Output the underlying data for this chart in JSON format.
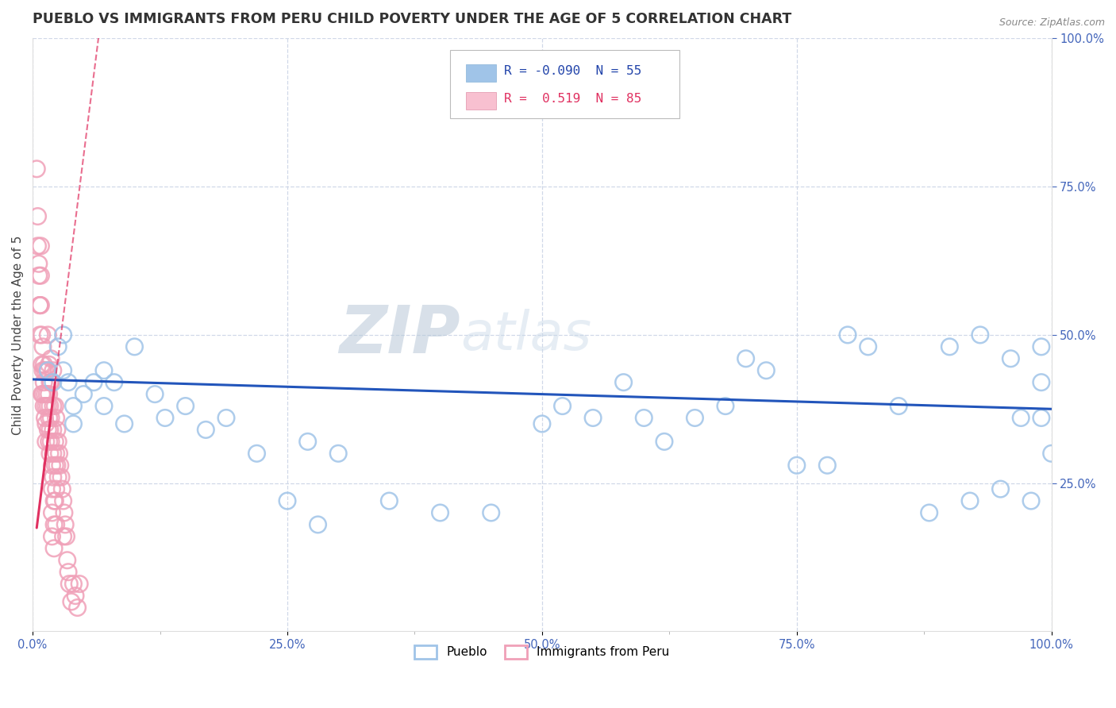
{
  "title": "PUEBLO VS IMMIGRANTS FROM PERU CHILD POVERTY UNDER THE AGE OF 5 CORRELATION CHART",
  "source": "Source: ZipAtlas.com",
  "ylabel": "Child Poverty Under the Age of 5",
  "xlim": [
    0.0,
    1.0
  ],
  "ylim": [
    0.0,
    1.0
  ],
  "xtick_labels": [
    "0.0%",
    "",
    "25.0%",
    "",
    "50.0%",
    "",
    "75.0%",
    "",
    "100.0%"
  ],
  "xtick_positions": [
    0.0,
    0.125,
    0.25,
    0.375,
    0.5,
    0.625,
    0.75,
    0.875,
    1.0
  ],
  "ytick_labels_right": [
    "100.0%",
    "75.0%",
    "50.0%",
    "25.0%"
  ],
  "ytick_positions": [
    1.0,
    0.75,
    0.5,
    0.25
  ],
  "pueblo_color": "#a0c4e8",
  "peru_color": "#f0a0b8",
  "pueblo_line_color": "#2255bb",
  "peru_line_color": "#e03060",
  "background_color": "#ffffff",
  "grid_color": "#d0d8e8",
  "title_color": "#333333",
  "title_fontsize": 12.5,
  "axis_label_fontsize": 11,
  "tick_fontsize": 10.5,
  "tick_color": "#4466bb",
  "watermark_zip_color": "#c8d4e0",
  "watermark_atlas_color": "#c8d4e0",
  "watermark_fontsize": 60,
  "pueblo_scatter": [
    [
      0.015,
      0.44
    ],
    [
      0.02,
      0.42
    ],
    [
      0.025,
      0.48
    ],
    [
      0.03,
      0.5
    ],
    [
      0.03,
      0.44
    ],
    [
      0.035,
      0.42
    ],
    [
      0.04,
      0.38
    ],
    [
      0.04,
      0.35
    ],
    [
      0.05,
      0.4
    ],
    [
      0.06,
      0.42
    ],
    [
      0.07,
      0.44
    ],
    [
      0.07,
      0.38
    ],
    [
      0.08,
      0.42
    ],
    [
      0.09,
      0.35
    ],
    [
      0.1,
      0.48
    ],
    [
      0.12,
      0.4
    ],
    [
      0.13,
      0.36
    ],
    [
      0.15,
      0.38
    ],
    [
      0.17,
      0.34
    ],
    [
      0.19,
      0.36
    ],
    [
      0.22,
      0.3
    ],
    [
      0.25,
      0.22
    ],
    [
      0.27,
      0.32
    ],
    [
      0.3,
      0.3
    ],
    [
      0.35,
      0.22
    ],
    [
      0.4,
      0.2
    ],
    [
      0.45,
      0.2
    ],
    [
      0.5,
      0.35
    ],
    [
      0.52,
      0.38
    ],
    [
      0.55,
      0.36
    ],
    [
      0.58,
      0.42
    ],
    [
      0.6,
      0.36
    ],
    [
      0.62,
      0.32
    ],
    [
      0.65,
      0.36
    ],
    [
      0.68,
      0.38
    ],
    [
      0.7,
      0.46
    ],
    [
      0.72,
      0.44
    ],
    [
      0.75,
      0.28
    ],
    [
      0.78,
      0.28
    ],
    [
      0.8,
      0.5
    ],
    [
      0.82,
      0.48
    ],
    [
      0.85,
      0.38
    ],
    [
      0.88,
      0.2
    ],
    [
      0.9,
      0.48
    ],
    [
      0.92,
      0.22
    ],
    [
      0.93,
      0.5
    ],
    [
      0.95,
      0.24
    ],
    [
      0.96,
      0.46
    ],
    [
      0.97,
      0.36
    ],
    [
      0.98,
      0.22
    ],
    [
      0.99,
      0.48
    ],
    [
      0.99,
      0.42
    ],
    [
      0.99,
      0.36
    ],
    [
      1.0,
      0.3
    ],
    [
      0.28,
      0.18
    ]
  ],
  "peru_scatter": [
    [
      0.004,
      0.78
    ],
    [
      0.005,
      0.7
    ],
    [
      0.005,
      0.65
    ],
    [
      0.006,
      0.62
    ],
    [
      0.006,
      0.6
    ],
    [
      0.007,
      0.55
    ],
    [
      0.007,
      0.5
    ],
    [
      0.007,
      0.55
    ],
    [
      0.008,
      0.65
    ],
    [
      0.008,
      0.6
    ],
    [
      0.008,
      0.55
    ],
    [
      0.009,
      0.5
    ],
    [
      0.009,
      0.45
    ],
    [
      0.009,
      0.4
    ],
    [
      0.01,
      0.48
    ],
    [
      0.01,
      0.44
    ],
    [
      0.01,
      0.4
    ],
    [
      0.011,
      0.45
    ],
    [
      0.011,
      0.42
    ],
    [
      0.011,
      0.38
    ],
    [
      0.012,
      0.44
    ],
    [
      0.012,
      0.4
    ],
    [
      0.012,
      0.36
    ],
    [
      0.013,
      0.38
    ],
    [
      0.013,
      0.35
    ],
    [
      0.013,
      0.32
    ],
    [
      0.014,
      0.44
    ],
    [
      0.014,
      0.4
    ],
    [
      0.015,
      0.5
    ],
    [
      0.015,
      0.44
    ],
    [
      0.015,
      0.38
    ],
    [
      0.015,
      0.34
    ],
    [
      0.016,
      0.45
    ],
    [
      0.016,
      0.4
    ],
    [
      0.016,
      0.36
    ],
    [
      0.016,
      0.32
    ],
    [
      0.017,
      0.42
    ],
    [
      0.017,
      0.38
    ],
    [
      0.017,
      0.34
    ],
    [
      0.017,
      0.3
    ],
    [
      0.018,
      0.46
    ],
    [
      0.018,
      0.42
    ],
    [
      0.018,
      0.36
    ],
    [
      0.018,
      0.32
    ],
    [
      0.019,
      0.28
    ],
    [
      0.019,
      0.24
    ],
    [
      0.019,
      0.2
    ],
    [
      0.019,
      0.16
    ],
    [
      0.02,
      0.44
    ],
    [
      0.02,
      0.38
    ],
    [
      0.02,
      0.34
    ],
    [
      0.02,
      0.3
    ],
    [
      0.02,
      0.26
    ],
    [
      0.021,
      0.22
    ],
    [
      0.021,
      0.18
    ],
    [
      0.021,
      0.14
    ],
    [
      0.022,
      0.38
    ],
    [
      0.022,
      0.32
    ],
    [
      0.022,
      0.28
    ],
    [
      0.022,
      0.22
    ],
    [
      0.023,
      0.36
    ],
    [
      0.023,
      0.3
    ],
    [
      0.023,
      0.24
    ],
    [
      0.023,
      0.18
    ],
    [
      0.024,
      0.34
    ],
    [
      0.024,
      0.28
    ],
    [
      0.025,
      0.32
    ],
    [
      0.025,
      0.26
    ],
    [
      0.026,
      0.3
    ],
    [
      0.027,
      0.28
    ],
    [
      0.028,
      0.26
    ],
    [
      0.029,
      0.24
    ],
    [
      0.03,
      0.22
    ],
    [
      0.03,
      0.16
    ],
    [
      0.031,
      0.2
    ],
    [
      0.032,
      0.18
    ],
    [
      0.033,
      0.16
    ],
    [
      0.034,
      0.12
    ],
    [
      0.035,
      0.1
    ],
    [
      0.036,
      0.08
    ],
    [
      0.038,
      0.05
    ],
    [
      0.04,
      0.08
    ],
    [
      0.042,
      0.06
    ],
    [
      0.044,
      0.04
    ],
    [
      0.046,
      0.08
    ]
  ]
}
